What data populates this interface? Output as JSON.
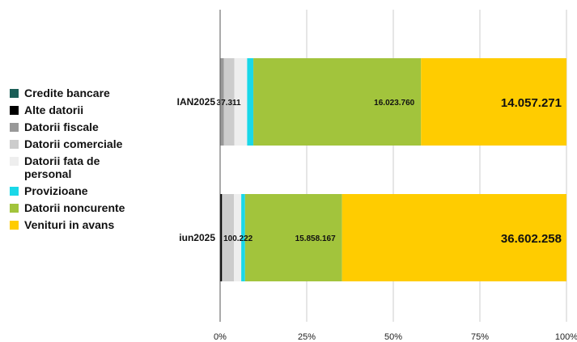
{
  "chart_data": {
    "type": "bar",
    "orientation": "horizontal",
    "stacked": "percent",
    "categories": [
      "IAN2025",
      "iun2025"
    ],
    "series": [
      {
        "name": "Credite bancare",
        "color": "#1b5e57",
        "values": [
          0.0,
          0.0
        ]
      },
      {
        "name": "Alte datorii",
        "color": "#000000",
        "values": [
          0.0,
          0.5
        ]
      },
      {
        "name": "Datorii fiscale",
        "color": "#999999",
        "values": [
          1.1,
          0.2
        ]
      },
      {
        "name": "Datorii comerciale",
        "color": "#cccccc",
        "values": [
          3.0,
          3.3
        ]
      },
      {
        "name": "Datorii fata de personal",
        "color": "#eeeeee",
        "values": [
          3.7,
          2.1
        ]
      },
      {
        "name": "Provizioane",
        "color": "#1ad8e8",
        "values": [
          1.8,
          1.1
        ]
      },
      {
        "name": "Datorii noncurente",
        "color": "#a2c43c",
        "values": [
          48.4,
          28.0
        ]
      },
      {
        "name": "Venituri in avans",
        "color": "#ffcc00",
        "values": [
          42.0,
          64.8
        ]
      }
    ],
    "data_labels": [
      [
        {
          "series": "Datorii fata de personal",
          "text": "37.311",
          "size": "small"
        },
        {
          "series": "Datorii noncurente",
          "text": "16.023.760",
          "size": "small"
        },
        {
          "series": "Venituri in avans",
          "text": "14.057.271",
          "size": "large"
        }
      ],
      [
        {
          "series": "Provizioane",
          "text": "100.222",
          "size": "small"
        },
        {
          "series": "Datorii noncurente",
          "text": "15.858.167",
          "size": "small"
        },
        {
          "series": "Venituri in avans",
          "text": "36.602.258",
          "size": "large"
        }
      ]
    ],
    "x_ticks": [
      "0%",
      "25%",
      "50%",
      "75%",
      "100%"
    ],
    "xlim": [
      0,
      100
    ],
    "grid": true,
    "legend_position": "left"
  }
}
